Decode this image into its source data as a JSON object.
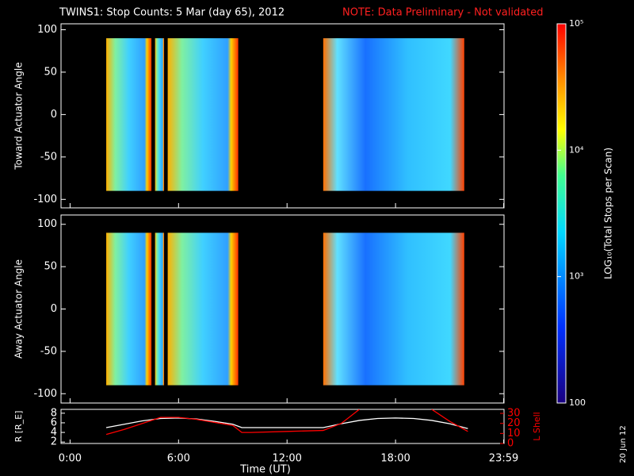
{
  "chart_data": {
    "type": "spectrogram",
    "title": "TWINS1: Stop Counts:  5 Mar (day  65), 2012",
    "subtitle": "NOTE: Data Preliminary - Not validated",
    "date_stamp": "20 Jun 12",
    "x_label": "Time (UT)",
    "xlim": [
      -0.5,
      24
    ],
    "xticks": [
      {
        "value": 0,
        "label": "0:00"
      },
      {
        "value": 6,
        "label": "6:00"
      },
      {
        "value": 12,
        "label": "12:00"
      },
      {
        "value": 18,
        "label": "18:00"
      },
      {
        "value": 23.98,
        "label": "23:59"
      }
    ],
    "panels": [
      {
        "y_label": "Toward Actuator Angle",
        "ylim": [
          -110,
          107
        ],
        "yticks": [
          -100,
          -50,
          0,
          50,
          100
        ]
      },
      {
        "y_label": "Away Actuator Angle",
        "ylim": [
          -111,
          111
        ],
        "yticks": [
          -100,
          -50,
          0,
          50,
          100
        ]
      }
    ],
    "colorbar": {
      "label": "LOG₁₀(Total Stops per Scan)",
      "log": true,
      "lim": [
        100,
        100000
      ],
      "ticks": [
        {
          "value": 100000,
          "label": "10⁵"
        },
        {
          "value": 10000,
          "label": "10⁴"
        },
        {
          "value": 1000,
          "label": "10³"
        },
        100
      ]
    },
    "line_panel": {
      "type": "line",
      "x": [
        2,
        3,
        4,
        5,
        6,
        7,
        8,
        9,
        9.5,
        10,
        12,
        14,
        15,
        16,
        17,
        18,
        19,
        20,
        21,
        22
      ],
      "ylim": [
        1.7,
        8.8
      ],
      "yticks": [
        2,
        4,
        6,
        8
      ],
      "y_label": "R [R_E]",
      "y2lim": [
        0,
        34
      ],
      "y2ticks": [
        0,
        10,
        20,
        30
      ],
      "y2_label": "L Shell",
      "series": [
        {
          "name": "R",
          "color": "#ffffff",
          "values": [
            5,
            5.7,
            6.4,
            6.9,
            7,
            6.8,
            6.3,
            5.7,
            5,
            5,
            5,
            5,
            5.8,
            6.5,
            6.9,
            7,
            6.9,
            6.5,
            5.8,
            4.8
          ]
        },
        {
          "name": "L Shell",
          "color": "#ff0000",
          "axis": "y2",
          "values": [
            9,
            14,
            20,
            26,
            26,
            24,
            21,
            18,
            11,
            11,
            12,
            13,
            20,
            34,
            null,
            null,
            null,
            34,
            22,
            12
          ]
        }
      ]
    }
  }
}
